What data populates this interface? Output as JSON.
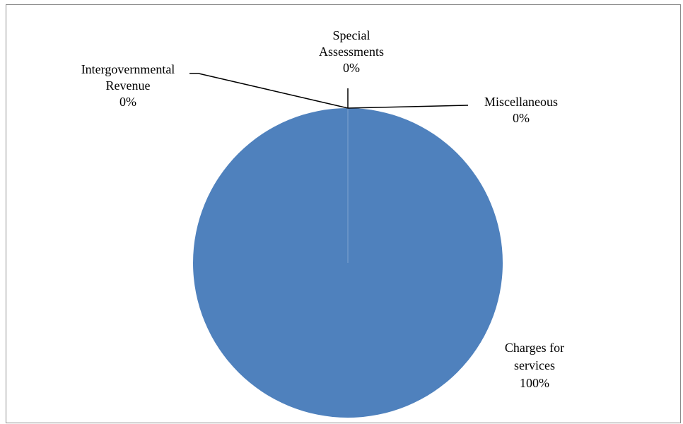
{
  "chart_data": {
    "type": "pie",
    "title": "",
    "series": [
      {
        "values": [
          0,
          0,
          0,
          100
        ]
      }
    ],
    "categories": [
      "Intergovernmental Revenue",
      "Special Assessments",
      "Miscellaneous",
      "Charges for services"
    ],
    "slices": [
      {
        "label_lines": [
          "Intergovernmental",
          "Revenue"
        ],
        "percent_label": "0%",
        "value": 0
      },
      {
        "label_lines": [
          "Special",
          "Assessments"
        ],
        "percent_label": "0%",
        "value": 0
      },
      {
        "label_lines": [
          "Miscellaneous"
        ],
        "percent_label": "0%",
        "value": 0
      },
      {
        "label_lines": [
          "Charges for",
          "services"
        ],
        "percent_label": "100%",
        "value": 100,
        "color": "#4f81bd"
      }
    ],
    "legend": "none",
    "colors": {
      "main_slice": "#4f81bd",
      "divider": "#7fa3d0",
      "leader": "#000000"
    }
  }
}
